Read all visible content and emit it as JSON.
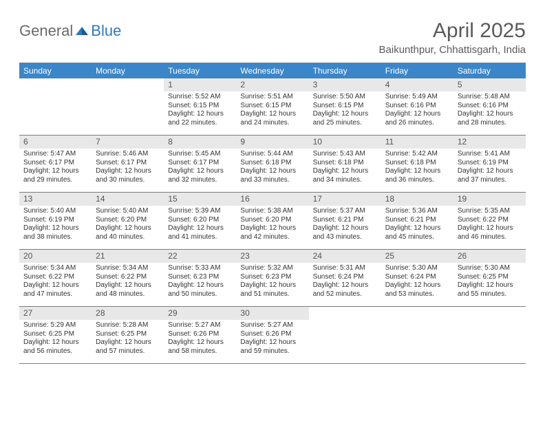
{
  "logo": {
    "text1": "General",
    "text2": "Blue"
  },
  "title": "April 2025",
  "location": "Baikunthpur, Chhattisgarh, India",
  "colors": {
    "header_bar": "#3a86c8",
    "daynum_bg": "#e8e8e8",
    "rule": "#7a7a7a",
    "logo_gray": "#6a6a6a",
    "logo_blue": "#2f78bf"
  },
  "days_of_week": [
    "Sunday",
    "Monday",
    "Tuesday",
    "Wednesday",
    "Thursday",
    "Friday",
    "Saturday"
  ],
  "weeks": [
    [
      {
        "n": "",
        "sr": "",
        "ss": "",
        "dl": ""
      },
      {
        "n": "",
        "sr": "",
        "ss": "",
        "dl": ""
      },
      {
        "n": "1",
        "sr": "Sunrise: 5:52 AM",
        "ss": "Sunset: 6:15 PM",
        "dl": "Daylight: 12 hours and 22 minutes."
      },
      {
        "n": "2",
        "sr": "Sunrise: 5:51 AM",
        "ss": "Sunset: 6:15 PM",
        "dl": "Daylight: 12 hours and 24 minutes."
      },
      {
        "n": "3",
        "sr": "Sunrise: 5:50 AM",
        "ss": "Sunset: 6:15 PM",
        "dl": "Daylight: 12 hours and 25 minutes."
      },
      {
        "n": "4",
        "sr": "Sunrise: 5:49 AM",
        "ss": "Sunset: 6:16 PM",
        "dl": "Daylight: 12 hours and 26 minutes."
      },
      {
        "n": "5",
        "sr": "Sunrise: 5:48 AM",
        "ss": "Sunset: 6:16 PM",
        "dl": "Daylight: 12 hours and 28 minutes."
      }
    ],
    [
      {
        "n": "6",
        "sr": "Sunrise: 5:47 AM",
        "ss": "Sunset: 6:17 PM",
        "dl": "Daylight: 12 hours and 29 minutes."
      },
      {
        "n": "7",
        "sr": "Sunrise: 5:46 AM",
        "ss": "Sunset: 6:17 PM",
        "dl": "Daylight: 12 hours and 30 minutes."
      },
      {
        "n": "8",
        "sr": "Sunrise: 5:45 AM",
        "ss": "Sunset: 6:17 PM",
        "dl": "Daylight: 12 hours and 32 minutes."
      },
      {
        "n": "9",
        "sr": "Sunrise: 5:44 AM",
        "ss": "Sunset: 6:18 PM",
        "dl": "Daylight: 12 hours and 33 minutes."
      },
      {
        "n": "10",
        "sr": "Sunrise: 5:43 AM",
        "ss": "Sunset: 6:18 PM",
        "dl": "Daylight: 12 hours and 34 minutes."
      },
      {
        "n": "11",
        "sr": "Sunrise: 5:42 AM",
        "ss": "Sunset: 6:18 PM",
        "dl": "Daylight: 12 hours and 36 minutes."
      },
      {
        "n": "12",
        "sr": "Sunrise: 5:41 AM",
        "ss": "Sunset: 6:19 PM",
        "dl": "Daylight: 12 hours and 37 minutes."
      }
    ],
    [
      {
        "n": "13",
        "sr": "Sunrise: 5:40 AM",
        "ss": "Sunset: 6:19 PM",
        "dl": "Daylight: 12 hours and 38 minutes."
      },
      {
        "n": "14",
        "sr": "Sunrise: 5:40 AM",
        "ss": "Sunset: 6:20 PM",
        "dl": "Daylight: 12 hours and 40 minutes."
      },
      {
        "n": "15",
        "sr": "Sunrise: 5:39 AM",
        "ss": "Sunset: 6:20 PM",
        "dl": "Daylight: 12 hours and 41 minutes."
      },
      {
        "n": "16",
        "sr": "Sunrise: 5:38 AM",
        "ss": "Sunset: 6:20 PM",
        "dl": "Daylight: 12 hours and 42 minutes."
      },
      {
        "n": "17",
        "sr": "Sunrise: 5:37 AM",
        "ss": "Sunset: 6:21 PM",
        "dl": "Daylight: 12 hours and 43 minutes."
      },
      {
        "n": "18",
        "sr": "Sunrise: 5:36 AM",
        "ss": "Sunset: 6:21 PM",
        "dl": "Daylight: 12 hours and 45 minutes."
      },
      {
        "n": "19",
        "sr": "Sunrise: 5:35 AM",
        "ss": "Sunset: 6:22 PM",
        "dl": "Daylight: 12 hours and 46 minutes."
      }
    ],
    [
      {
        "n": "20",
        "sr": "Sunrise: 5:34 AM",
        "ss": "Sunset: 6:22 PM",
        "dl": "Daylight: 12 hours and 47 minutes."
      },
      {
        "n": "21",
        "sr": "Sunrise: 5:34 AM",
        "ss": "Sunset: 6:22 PM",
        "dl": "Daylight: 12 hours and 48 minutes."
      },
      {
        "n": "22",
        "sr": "Sunrise: 5:33 AM",
        "ss": "Sunset: 6:23 PM",
        "dl": "Daylight: 12 hours and 50 minutes."
      },
      {
        "n": "23",
        "sr": "Sunrise: 5:32 AM",
        "ss": "Sunset: 6:23 PM",
        "dl": "Daylight: 12 hours and 51 minutes."
      },
      {
        "n": "24",
        "sr": "Sunrise: 5:31 AM",
        "ss": "Sunset: 6:24 PM",
        "dl": "Daylight: 12 hours and 52 minutes."
      },
      {
        "n": "25",
        "sr": "Sunrise: 5:30 AM",
        "ss": "Sunset: 6:24 PM",
        "dl": "Daylight: 12 hours and 53 minutes."
      },
      {
        "n": "26",
        "sr": "Sunrise: 5:30 AM",
        "ss": "Sunset: 6:25 PM",
        "dl": "Daylight: 12 hours and 55 minutes."
      }
    ],
    [
      {
        "n": "27",
        "sr": "Sunrise: 5:29 AM",
        "ss": "Sunset: 6:25 PM",
        "dl": "Daylight: 12 hours and 56 minutes."
      },
      {
        "n": "28",
        "sr": "Sunrise: 5:28 AM",
        "ss": "Sunset: 6:25 PM",
        "dl": "Daylight: 12 hours and 57 minutes."
      },
      {
        "n": "29",
        "sr": "Sunrise: 5:27 AM",
        "ss": "Sunset: 6:26 PM",
        "dl": "Daylight: 12 hours and 58 minutes."
      },
      {
        "n": "30",
        "sr": "Sunrise: 5:27 AM",
        "ss": "Sunset: 6:26 PM",
        "dl": "Daylight: 12 hours and 59 minutes."
      },
      {
        "n": "",
        "sr": "",
        "ss": "",
        "dl": ""
      },
      {
        "n": "",
        "sr": "",
        "ss": "",
        "dl": ""
      },
      {
        "n": "",
        "sr": "",
        "ss": "",
        "dl": ""
      }
    ]
  ]
}
